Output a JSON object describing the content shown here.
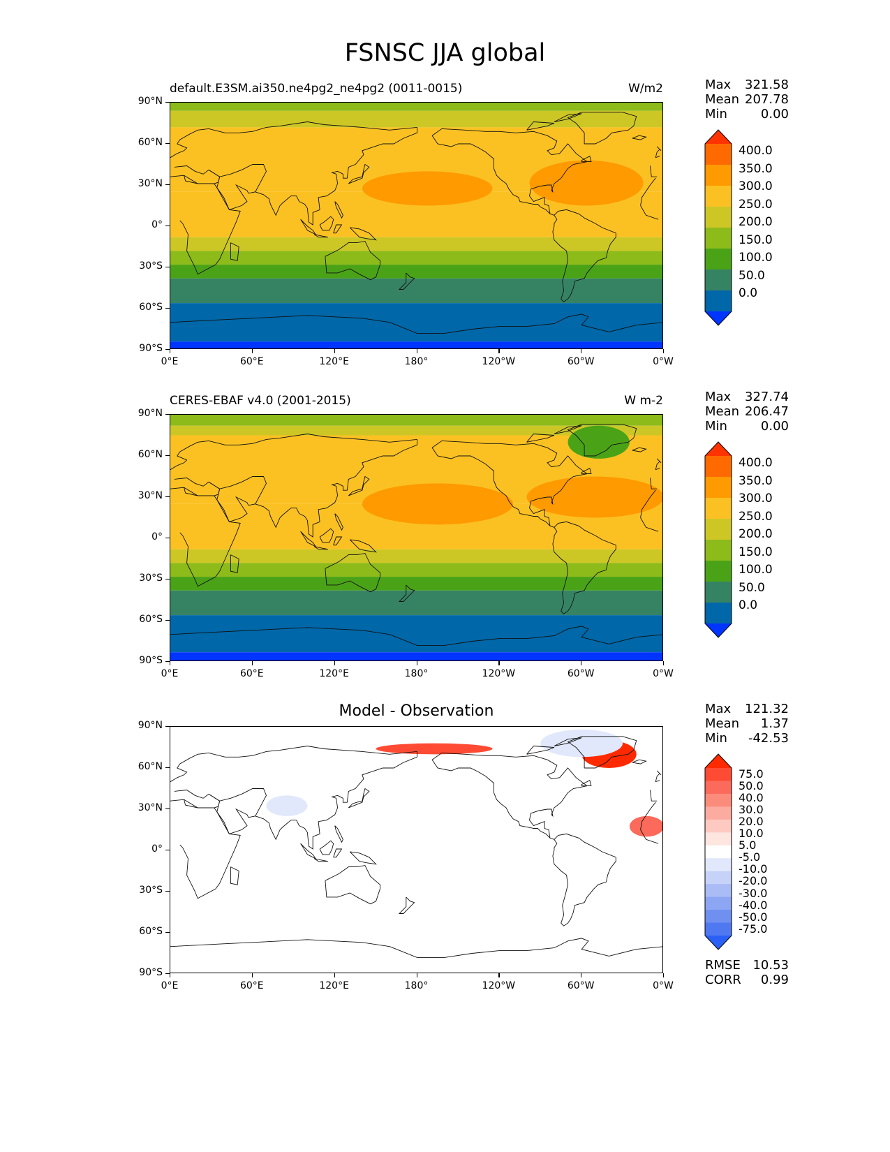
{
  "title": "FSNSC JJA global",
  "x_ticks": [
    "0°E",
    "60°E",
    "120°E",
    "180°",
    "120°W",
    "60°W",
    "0°W"
  ],
  "y_ticks": [
    "90°N",
    "60°N",
    "30°N",
    "0°",
    "30°S",
    "60°S",
    "90°S"
  ],
  "seq_colorbar": {
    "labels": [
      "400.0",
      "350.0",
      "300.0",
      "250.0",
      "200.0",
      "150.0",
      "100.0",
      "50.0",
      "0.0"
    ],
    "colors": [
      "#ff3300",
      "#ff6a00",
      "#ff9a00",
      "#fbc123",
      "#cdc726",
      "#8dbb1a",
      "#4aa317",
      "#368364",
      "#0067a8",
      "#0035ff"
    ]
  },
  "div_colorbar": {
    "labels": [
      "75.0",
      "50.0",
      "40.0",
      "30.0",
      "20.0",
      "10.0",
      "5.0",
      "-5.0",
      "-10.0",
      "-20.0",
      "-30.0",
      "-40.0",
      "-50.0",
      "-75.0"
    ],
    "colors": [
      "#ff2a00",
      "#ff4b33",
      "#fb6a5a",
      "#fb8c7c",
      "#fbaba0",
      "#fdc9c0",
      "#fde5e0",
      "#ffffff",
      "#e1e8fb",
      "#c6d2f8",
      "#aabcf6",
      "#8da6f3",
      "#6f8ff1",
      "#5078f0",
      "#2a60f5"
    ]
  },
  "panels": [
    {
      "title_left": "default.E3SM.ai350.ne4pg2_ne4pg2 (0011-0015)",
      "title_right": "W/m2",
      "title_center": "",
      "stats": [
        {
          "label": "Max",
          "value": "321.58"
        },
        {
          "label": "Mean",
          "value": "207.78"
        },
        {
          "label": "Min",
          "value": "0.00"
        }
      ]
    },
    {
      "title_left": "CERES-EBAF v4.0 (2001-2015)",
      "title_right": "W m-2",
      "title_center": "",
      "stats": [
        {
          "label": "Max",
          "value": "327.74"
        },
        {
          "label": "Mean",
          "value": "206.47"
        },
        {
          "label": "Min",
          "value": "0.00"
        }
      ]
    },
    {
      "title_left": "",
      "title_right": "",
      "title_center": "Model - Observation",
      "stats": [
        {
          "label": "Max",
          "value": "121.32"
        },
        {
          "label": "Mean",
          "value": "1.37"
        },
        {
          "label": "Min",
          "value": "-42.53"
        }
      ],
      "footer_stats": [
        {
          "label": "RMSE",
          "value": "10.53"
        },
        {
          "label": "CORR",
          "value": "0.99"
        }
      ]
    }
  ],
  "chart_data": [
    {
      "type": "heatmap",
      "title": "default.E3SM.ai350.ne4pg2_ne4pg2 (0011-0015)",
      "units": "W/m2",
      "x_ticks": [
        "0°E",
        "60°E",
        "120°E",
        "180°",
        "120°W",
        "60°W",
        "0°W"
      ],
      "y_ticks": [
        "90°N",
        "60°N",
        "30°N",
        "0°",
        "30°S",
        "60°S",
        "90°S"
      ],
      "xlim": [
        0,
        360
      ],
      "ylim": [
        -90,
        90
      ],
      "levels": [
        0,
        50,
        100,
        150,
        200,
        250,
        300,
        350,
        400
      ],
      "max": 321.58,
      "mean": 207.78,
      "min": 0.0,
      "zonal_bands": [
        {
          "lat": [
            84,
            90
          ],
          "value": 150
        },
        {
          "lat": [
            72,
            84
          ],
          "value": 200
        },
        {
          "lat": [
            25,
            72
          ],
          "value": 250
        },
        {
          "lat": [
            -8,
            25
          ],
          "value": 250
        },
        {
          "lat": [
            -18,
            -8
          ],
          "value": 200
        },
        {
          "lat": [
            -28,
            -18
          ],
          "value": 150
        },
        {
          "lat": [
            -38,
            -28
          ],
          "value": 100
        },
        {
          "lat": [
            -56,
            -38
          ],
          "value": 50
        },
        {
          "lat": [
            -84,
            -56
          ],
          "value": 0
        },
        {
          "lat": [
            -90,
            -84
          ],
          "value": -1
        }
      ],
      "features": [
        {
          "name": "North Pacific maximum",
          "lon": [
            140,
            235
          ],
          "lat": [
            15,
            40
          ],
          "value": 300
        },
        {
          "name": "North Atlantic maximum",
          "lon": [
            262,
            345
          ],
          "lat": [
            15,
            48
          ],
          "value": 300
        }
      ]
    },
    {
      "type": "heatmap",
      "title": "CERES-EBAF v4.0 (2001-2015)",
      "units": "W m-2",
      "x_ticks": [
        "0°E",
        "60°E",
        "120°E",
        "180°",
        "120°W",
        "60°W",
        "0°W"
      ],
      "y_ticks": [
        "90°N",
        "60°N",
        "30°N",
        "0°",
        "30°S",
        "60°S",
        "90°S"
      ],
      "xlim": [
        0,
        360
      ],
      "ylim": [
        -90,
        90
      ],
      "levels": [
        0,
        50,
        100,
        150,
        200,
        250,
        300,
        350,
        400
      ],
      "max": 327.74,
      "mean": 206.47,
      "min": 0.0,
      "zonal_bands": [
        {
          "lat": [
            82,
            90
          ],
          "value": 150
        },
        {
          "lat": [
            75,
            82
          ],
          "value": 200
        },
        {
          "lat": [
            25,
            75
          ],
          "value": 250
        },
        {
          "lat": [
            -8,
            25
          ],
          "value": 250
        },
        {
          "lat": [
            -18,
            -8
          ],
          "value": 200
        },
        {
          "lat": [
            -28,
            -18
          ],
          "value": 150
        },
        {
          "lat": [
            -38,
            -28
          ],
          "value": 100
        },
        {
          "lat": [
            -56,
            -38
          ],
          "value": 50
        },
        {
          "lat": [
            -83,
            -56
          ],
          "value": 0
        },
        {
          "lat": [
            -90,
            -83
          ],
          "value": -1
        }
      ],
      "features": [
        {
          "name": "North Pacific maximum",
          "lon": [
            140,
            250
          ],
          "lat": [
            10,
            40
          ],
          "value": 300
        },
        {
          "name": "North Atlantic maximum",
          "lon": [
            260,
            360
          ],
          "lat": [
            15,
            45
          ],
          "value": 300
        },
        {
          "name": "Greenland",
          "lon": [
            290,
            335
          ],
          "lat": [
            58,
            82
          ],
          "value": 100
        }
      ]
    },
    {
      "type": "heatmap",
      "title": "Model - Observation",
      "x_ticks": [
        "0°E",
        "60°E",
        "120°E",
        "180°",
        "120°W",
        "60°W",
        "0°W"
      ],
      "y_ticks": [
        "90°N",
        "60°N",
        "30°N",
        "0°",
        "30°S",
        "60°S",
        "90°S"
      ],
      "xlim": [
        0,
        360
      ],
      "ylim": [
        -90,
        90
      ],
      "levels": [
        -75,
        -50,
        -40,
        -30,
        -20,
        -10,
        -5,
        5,
        10,
        20,
        30,
        40,
        50,
        75
      ],
      "max": 121.32,
      "mean": 1.37,
      "min": -42.53,
      "rmse": 10.53,
      "corr": 0.99,
      "features": [
        {
          "name": "Greenland positive anomaly",
          "lon": [
            300,
            340
          ],
          "lat": [
            60,
            80
          ],
          "value": 75
        },
        {
          "name": "Arctic Pacific sector positive",
          "lon": [
            150,
            235
          ],
          "lat": [
            70,
            78
          ],
          "value": 50
        },
        {
          "name": "Caribbean/Atlantic positive",
          "lon": [
            335,
            360
          ],
          "lat": [
            10,
            25
          ],
          "value": 40
        },
        {
          "name": "Central Asia negative",
          "lon": [
            70,
            100
          ],
          "lat": [
            25,
            40
          ],
          "value": -10
        },
        {
          "name": "Arctic Canada negative",
          "lon": [
            270,
            330
          ],
          "lat": [
            68,
            88
          ],
          "value": -10
        }
      ]
    }
  ]
}
